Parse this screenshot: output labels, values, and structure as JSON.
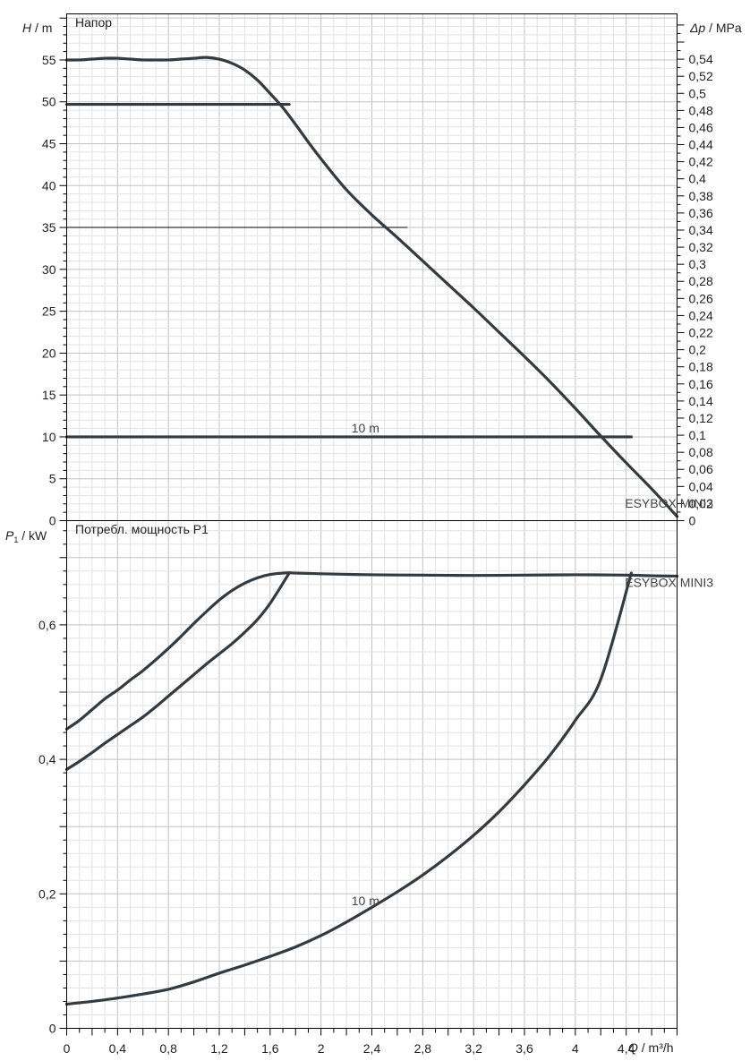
{
  "chart_data": [
    {
      "type": "line",
      "title": "Напор",
      "ylabel_symbol": "H",
      "ylabel_unit": " / m",
      "y2label_symbol": "Δp",
      "y2label_unit": " / MPa",
      "xlim": [
        0,
        4.8
      ],
      "ylim": [
        0,
        60.5
      ],
      "y2lim": [
        0,
        0.593
      ],
      "yticks": [
        0,
        5,
        10,
        15,
        20,
        25,
        30,
        35,
        40,
        45,
        50,
        55
      ],
      "y2ticks": [
        "0",
        "0,02",
        "0,04",
        "0,06",
        "0,08",
        "0,1",
        "0,12",
        "0,14",
        "0,16",
        "0,18",
        "0,2",
        "0,22",
        "0,24",
        "0,26",
        "0,28",
        "0,3",
        "0,32",
        "0,34",
        "0,36",
        "0,38",
        "0,4",
        "0,42",
        "0,44",
        "0,46",
        "0,48",
        "0,5",
        "0,52",
        "0,54"
      ],
      "grid": true,
      "series": [
        {
          "name": "ESYBOX MINI3",
          "x": [
            0,
            0.1,
            0.2,
            0.3,
            0.4,
            0.5,
            0.6,
            0.7,
            0.8,
            0.9,
            1.0,
            1.1,
            1.2,
            1.3,
            1.4,
            1.5,
            1.6,
            1.7,
            1.8,
            1.9,
            2.0,
            2.2,
            2.4,
            2.6,
            2.8,
            3.0,
            3.2,
            3.4,
            3.6,
            3.8,
            4.0,
            4.2,
            4.4,
            4.6,
            4.8
          ],
          "y": [
            55.0,
            55.0,
            55.1,
            55.2,
            55.2,
            55.1,
            55.0,
            55.0,
            55.0,
            55.1,
            55.2,
            55.3,
            55.1,
            54.6,
            53.8,
            52.6,
            51.0,
            49.3,
            47.3,
            45.2,
            43.2,
            39.5,
            36.5,
            33.8,
            31.0,
            28.2,
            25.4,
            22.5,
            19.6,
            16.6,
            13.4,
            10.1,
            6.9,
            3.8,
            0.5
          ]
        },
        {
          "name": "",
          "x": [
            0,
            0.2,
            0.4,
            0.6,
            0.8,
            1.0,
            1.2,
            1.4,
            1.6,
            1.75
          ],
          "y": [
            49.7,
            49.7,
            49.7,
            49.7,
            49.7,
            49.7,
            49.7,
            49.7,
            49.7,
            49.7
          ]
        },
        {
          "name": "10 m",
          "x": [
            0,
            0.5,
            1.0,
            1.5,
            2.0,
            2.5,
            3.0,
            3.5,
            4.0,
            4.44
          ],
          "y": [
            10,
            10,
            10,
            10,
            10,
            10,
            10,
            10,
            10,
            10
          ]
        }
      ],
      "annotations": [
        {
          "text": "10 m",
          "x": 2.24,
          "y": 10
        },
        {
          "text": "ESYBOX MINI3",
          "x": 4.39,
          "y": 1
        }
      ],
      "reference_line": {
        "x": [
          0,
          2.68
        ],
        "y": [
          35,
          35
        ]
      }
    },
    {
      "type": "line",
      "title": "Потребл. мощность P1",
      "ylabel_symbol": "P",
      "ylabel_sub": "1",
      "ylabel_unit": " / kW",
      "xlabel_symbol": "Q",
      "xlabel_unit": " / m³/h",
      "xlim": [
        0,
        4.8
      ],
      "ylim": [
        0,
        0.755
      ],
      "xticks": [
        "0",
        "0,4",
        "0,8",
        "1,2",
        "1,6",
        "2",
        "2,4",
        "2,8",
        "3,2",
        "3,6",
        "4",
        "4,4"
      ],
      "yticks": [
        "0",
        "0,2",
        "0,4",
        "0,6"
      ],
      "grid": true,
      "series": [
        {
          "name": "ESYBOX MINI3",
          "x": [
            0,
            0.1,
            0.2,
            0.3,
            0.4,
            0.5,
            0.6,
            0.7,
            0.8,
            0.9,
            1.0,
            1.1,
            1.2,
            1.3,
            1.4,
            1.5,
            1.6,
            1.7,
            1.75,
            1.8,
            2.0,
            2.4,
            2.8,
            3.2,
            3.6,
            4.0,
            4.4,
            4.6,
            4.8
          ],
          "y": [
            0.445,
            0.458,
            0.474,
            0.49,
            0.503,
            0.518,
            0.532,
            0.548,
            0.565,
            0.583,
            0.602,
            0.62,
            0.637,
            0.651,
            0.662,
            0.67,
            0.675,
            0.677,
            0.6775,
            0.677,
            0.676,
            0.6745,
            0.674,
            0.6735,
            0.674,
            0.6745,
            0.674,
            0.673,
            0.6725
          ]
        },
        {
          "name": "",
          "x": [
            0,
            0.1,
            0.2,
            0.3,
            0.4,
            0.5,
            0.6,
            0.7,
            0.8,
            0.9,
            1.0,
            1.1,
            1.2,
            1.3,
            1.4,
            1.5,
            1.6,
            1.75
          ],
          "y": [
            0.385,
            0.397,
            0.41,
            0.424,
            0.437,
            0.45,
            0.463,
            0.478,
            0.494,
            0.51,
            0.526,
            0.542,
            0.557,
            0.572,
            0.589,
            0.608,
            0.632,
            0.677
          ]
        },
        {
          "name": "10 m",
          "x": [
            0,
            0.2,
            0.4,
            0.6,
            0.8,
            1.0,
            1.2,
            1.4,
            1.6,
            1.8,
            2.0,
            2.2,
            2.4,
            2.6,
            2.8,
            3.0,
            3.2,
            3.4,
            3.6,
            3.8,
            4.0,
            4.2,
            4.44
          ],
          "y": [
            0.036,
            0.04,
            0.045,
            0.051,
            0.058,
            0.069,
            0.082,
            0.094,
            0.107,
            0.121,
            0.138,
            0.158,
            0.18,
            0.203,
            0.228,
            0.256,
            0.287,
            0.322,
            0.362,
            0.406,
            0.458,
            0.519,
            0.677
          ]
        }
      ],
      "annotations": [
        {
          "text": "10 m",
          "x": 2.24,
          "y": 0.19
        },
        {
          "text": "ESYBOX MINI3",
          "x": 4.39,
          "y": 0.663
        }
      ]
    }
  ]
}
